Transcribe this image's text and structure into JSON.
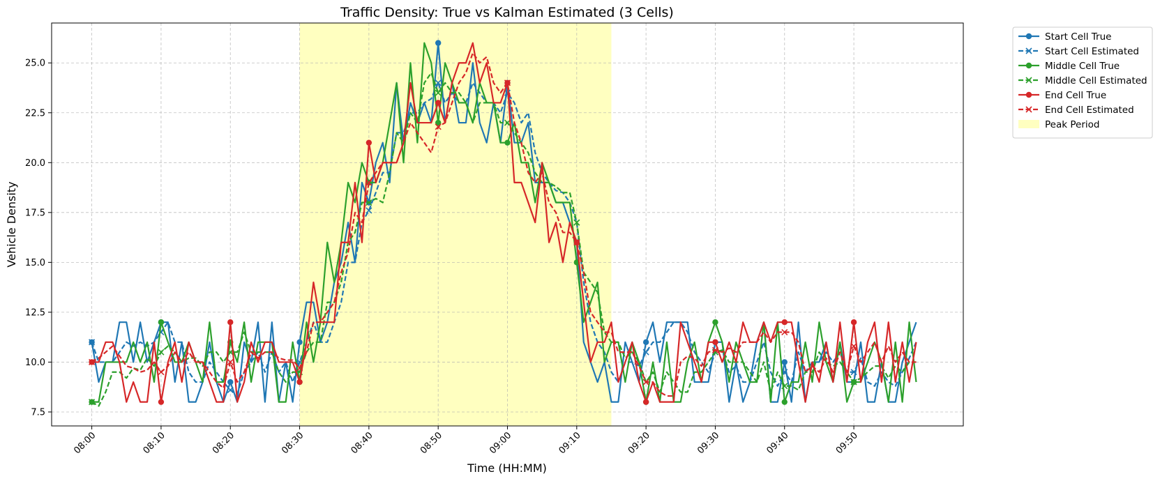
{
  "chart_data": {
    "type": "line",
    "title": "Traffic Density: True vs Kalman Estimated (3 Cells)",
    "xlabel": "Time (HH:MM)",
    "ylabel": "Vehicle Density",
    "x_tick_labels": [
      "08:00",
      "08:10",
      "08:20",
      "08:30",
      "08:40",
      "08:50",
      "09:00",
      "09:10",
      "09:20",
      "09:30",
      "09:40",
      "09:50"
    ],
    "x_tick_minutes": [
      0,
      10,
      20,
      30,
      40,
      50,
      60,
      70,
      80,
      90,
      100,
      110
    ],
    "y_ticks": [
      7.5,
      10.0,
      12.5,
      15.0,
      17.5,
      20.0,
      22.5,
      25.0
    ],
    "y_tick_labels": [
      "7.5",
      "10.0",
      "12.5",
      "15.0",
      "17.5",
      "20.0",
      "22.5",
      "25.0"
    ],
    "xlim": [
      -5.8,
      125.8
    ],
    "ylim": [
      6.8,
      27.0
    ],
    "x_unit": "minutes from 08:00",
    "marker_every_minutes": 10,
    "grid": true,
    "legend_position": "outside-top-right",
    "peak_period": {
      "label": "Peak Period",
      "start": 30,
      "end": 75,
      "color": "#ffffc0"
    },
    "colors": {
      "start": "#1f77b4",
      "middle": "#2ca02c",
      "end": "#d62728"
    },
    "series": [
      {
        "name": "Start Cell True",
        "color": "#1f77b4",
        "dash": false,
        "marker": "o",
        "values": [
          11,
          9,
          10,
          10,
          12,
          12,
          10,
          12,
          10,
          11,
          12,
          12,
          9,
          11,
          8,
          8,
          9,
          11,
          9,
          8,
          9,
          8,
          11,
          10,
          12,
          8,
          12,
          8,
          10,
          8,
          11,
          13,
          13,
          11,
          12,
          14,
          15,
          17,
          15,
          19,
          18,
          20,
          21,
          19,
          24,
          21,
          23,
          22,
          23,
          22,
          26,
          22,
          24,
          22,
          22,
          25,
          22,
          21,
          23,
          21,
          24,
          21,
          21,
          22,
          19,
          19,
          19,
          18,
          18,
          17,
          16,
          11,
          10,
          9,
          10,
          8,
          8,
          11,
          10,
          9,
          11,
          12,
          10,
          12,
          12,
          12,
          12,
          9,
          9,
          9,
          11,
          11,
          8,
          10,
          8,
          9,
          11,
          12,
          8,
          8,
          10,
          8,
          12,
          8,
          10,
          10,
          11,
          9,
          11,
          9,
          9,
          11,
          8,
          8,
          10,
          8,
          8,
          10,
          11,
          12
        ]
      },
      {
        "name": "Start Cell Estimated",
        "color": "#1f77b4",
        "dash": true,
        "marker": "x",
        "values": [
          11,
          10,
          10,
          10,
          10.5,
          11,
          10.8,
          11,
          10.8,
          11,
          11.5,
          12,
          11,
          11,
          9.5,
          9,
          9,
          10,
          9.5,
          9,
          8.6,
          8.4,
          9.5,
          10,
          10.5,
          9.5,
          10.5,
          9.5,
          10,
          9,
          10,
          11,
          12,
          11,
          11,
          12,
          13,
          15,
          15,
          17,
          17.6,
          18.5,
          19.5,
          19.5,
          21.5,
          21.5,
          22.5,
          22.5,
          23,
          23.2,
          24,
          23,
          23.5,
          23,
          23,
          24,
          23.5,
          23,
          23,
          22.5,
          23.5,
          23,
          22,
          22.5,
          20.5,
          19.5,
          19,
          18.6,
          18.5,
          18,
          17,
          14,
          12,
          11,
          10.5,
          9.5,
          9,
          10,
          10,
          9.8,
          10.5,
          11,
          11,
          11.5,
          12,
          12,
          11.5,
          10.5,
          10,
          9.5,
          10.5,
          10.6,
          9.5,
          9.8,
          9,
          9,
          10,
          11,
          9.5,
          8.8,
          9.5,
          9,
          10.5,
          9.5,
          10,
          10,
          10.5,
          10,
          10.5,
          9.5,
          9.5,
          10.2,
          9,
          8.8,
          9.5,
          9,
          8.8,
          9.5,
          10.2,
          11
        ]
      },
      {
        "name": "Middle Cell True",
        "color": "#2ca02c",
        "dash": false,
        "marker": "o",
        "values": [
          8,
          8,
          10,
          10,
          10,
          10,
          11,
          10,
          11,
          9,
          12,
          11,
          10,
          10,
          11,
          10,
          9,
          12,
          9,
          9,
          11,
          10,
          12,
          9,
          11,
          11,
          11,
          8,
          8,
          11,
          9,
          12,
          10,
          12,
          16,
          14,
          16,
          19,
          18,
          20,
          19,
          19,
          20,
          22,
          24,
          20,
          25,
          21,
          26,
          25,
          22,
          25,
          24,
          23,
          23,
          22,
          24,
          23,
          23,
          21,
          21,
          22,
          20,
          20,
          18,
          20,
          19,
          18,
          18,
          18,
          15,
          12,
          13,
          14,
          10,
          11,
          11,
          9,
          11,
          10,
          8,
          10,
          8,
          11,
          8,
          8,
          10,
          11,
          9,
          11,
          12,
          11,
          9,
          11,
          10,
          9,
          9,
          12,
          8,
          12,
          8,
          9,
          9,
          11,
          9,
          12,
          10,
          9,
          11,
          8,
          9,
          9,
          10,
          11,
          10,
          8,
          11,
          8,
          12,
          9
        ]
      },
      {
        "name": "Middle Cell Estimated",
        "color": "#2ca02c",
        "dash": true,
        "marker": "x",
        "values": [
          8,
          7.8,
          8.5,
          9.5,
          9.5,
          9.2,
          9.7,
          9.6,
          10.2,
          9.8,
          10.5,
          10.8,
          10.5,
          10,
          10.2,
          10.2,
          9.8,
          10.5,
          10.5,
          10,
          10.5,
          10.5,
          11.5,
          10.5,
          10.5,
          10.5,
          10.5,
          9.5,
          9,
          9.5,
          9.5,
          10.5,
          11,
          11,
          13,
          13,
          14,
          16,
          16.5,
          18,
          18,
          18.2,
          18,
          19.5,
          21.5,
          21,
          22.5,
          22,
          24,
          24.5,
          23.5,
          24,
          23.5,
          23.5,
          23,
          22,
          23,
          23,
          23,
          22,
          22,
          21.5,
          21,
          20.5,
          19.5,
          19,
          19,
          18.8,
          18.5,
          18.5,
          17,
          14.5,
          14,
          13.5,
          11.5,
          11,
          11,
          10.2,
          10.5,
          10,
          9,
          9.5,
          8.5,
          9.5,
          9,
          8.5,
          8.5,
          9.5,
          9.5,
          10,
          10.5,
          10.6,
          10,
          10,
          10,
          9.5,
          9,
          10,
          8.5,
          9.5,
          8.8,
          8.8,
          8.6,
          9.5,
          9.5,
          10.5,
          10,
          9.8,
          10,
          9.5,
          9,
          9.2,
          9.5,
          9.8,
          9.8,
          9.2,
          9.8,
          9.5,
          10,
          10
        ]
      },
      {
        "name": "End Cell True",
        "color": "#d62728",
        "dash": false,
        "marker": "o",
        "values": [
          10,
          10,
          11,
          11,
          10,
          8,
          9,
          8,
          8,
          11,
          8,
          10,
          11,
          9,
          11,
          10,
          10,
          9,
          8,
          8,
          12,
          8,
          9,
          11,
          10,
          11,
          11,
          10,
          10,
          10,
          9,
          11,
          14,
          12,
          12,
          12,
          16,
          16,
          19,
          16,
          21,
          19,
          20,
          20,
          20,
          21,
          24,
          22,
          22,
          22,
          23,
          22,
          24,
          25,
          25,
          26,
          24,
          25,
          23,
          23,
          24,
          19,
          19,
          18,
          17,
          20,
          16,
          17,
          15,
          17,
          16,
          13,
          10,
          11,
          11,
          12,
          9,
          10,
          11,
          9,
          8,
          9,
          8,
          8,
          8,
          12,
          11,
          10,
          9,
          11,
          11,
          10,
          11,
          10,
          12,
          11,
          11,
          12,
          11,
          12,
          12,
          12,
          10,
          8,
          10,
          9,
          11,
          9,
          12,
          9,
          12,
          9,
          11,
          12,
          9,
          12,
          9,
          11,
          9,
          11
        ]
      },
      {
        "name": "End Cell Estimated",
        "color": "#d62728",
        "dash": true,
        "marker": "x",
        "values": [
          10,
          10.2,
          10.5,
          10.8,
          10.3,
          9.8,
          9.7,
          9.5,
          9.6,
          10,
          9.5,
          9.8,
          10.5,
          10,
          10.5,
          10,
          10,
          9.5,
          9,
          8.7,
          10,
          9,
          9.5,
          10.5,
          10.2,
          10.5,
          10.5,
          10.2,
          10.1,
          10.1,
          9.7,
          10.5,
          12,
          12,
          12.5,
          13,
          14.5,
          15.5,
          17.5,
          17,
          19,
          19.5,
          20,
          20,
          20,
          21,
          22,
          21.5,
          21,
          20.5,
          21.8,
          22,
          23,
          24,
          24.5,
          25.5,
          25,
          25.3,
          24,
          23.5,
          24,
          22,
          21,
          19.5,
          19,
          19.5,
          18,
          17.5,
          16.5,
          16.5,
          16,
          14.5,
          12.5,
          12,
          11.5,
          11.5,
          10.5,
          10.5,
          10.5,
          9.8,
          9,
          9,
          8.5,
          8.3,
          8.3,
          10,
          10.3,
          10.2,
          9.8,
          10.5,
          10.6,
          10.5,
          10.7,
          10.5,
          11,
          11,
          11,
          11.5,
          11,
          11.5,
          11.5,
          11.5,
          11,
          9.5,
          9.8,
          9.5,
          10.2,
          9.5,
          10.5,
          9.5,
          10.8,
          10,
          10.5,
          11,
          10,
          10.8,
          10,
          10.5,
          10,
          10
        ]
      }
    ]
  }
}
